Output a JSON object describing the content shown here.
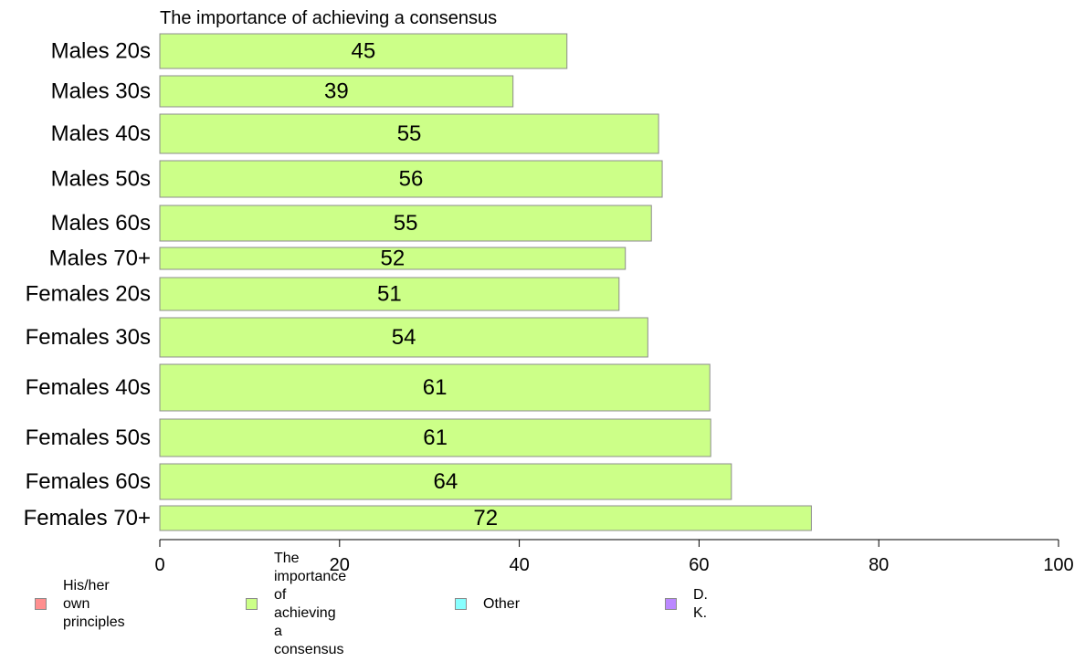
{
  "chart_data": {
    "type": "bar",
    "orientation": "horizontal",
    "title": "The importance of achieving a consensus",
    "categories": [
      "Males 20s",
      "Males 30s",
      "Males 40s",
      "Males 50s",
      "Males 60s",
      "Males 70+",
      "Females 20s",
      "Females 30s",
      "Females 40s",
      "Females 50s",
      "Females 60s",
      "Females 70+"
    ],
    "values": [
      45.3,
      39.3,
      55.5,
      55.9,
      54.7,
      51.8,
      51.1,
      54.3,
      61.2,
      61.3,
      63.6,
      72.5
    ],
    "data_labels": [
      "45",
      "39",
      "55",
      "56",
      "55",
      "52",
      "51",
      "54",
      "61",
      "61",
      "64",
      "72"
    ],
    "xlim": [
      0,
      100
    ],
    "xticks": [
      0,
      20,
      40,
      60,
      80,
      100
    ],
    "xlabel": "",
    "ylabel": "",
    "grid": false,
    "bar_color": "#ccff88",
    "bar_border_color": "#8c8c8c",
    "legend": {
      "placement": "bottom",
      "entries": [
        {
          "label": "His/her own principles",
          "color": "#ff8f8f"
        },
        {
          "label": "The importance of\nachieving a consensus",
          "color": "#ccff88"
        },
        {
          "label": "Other",
          "color": "#88ffff"
        },
        {
          "label": "D. K.",
          "color": "#bb88ff"
        }
      ]
    }
  }
}
